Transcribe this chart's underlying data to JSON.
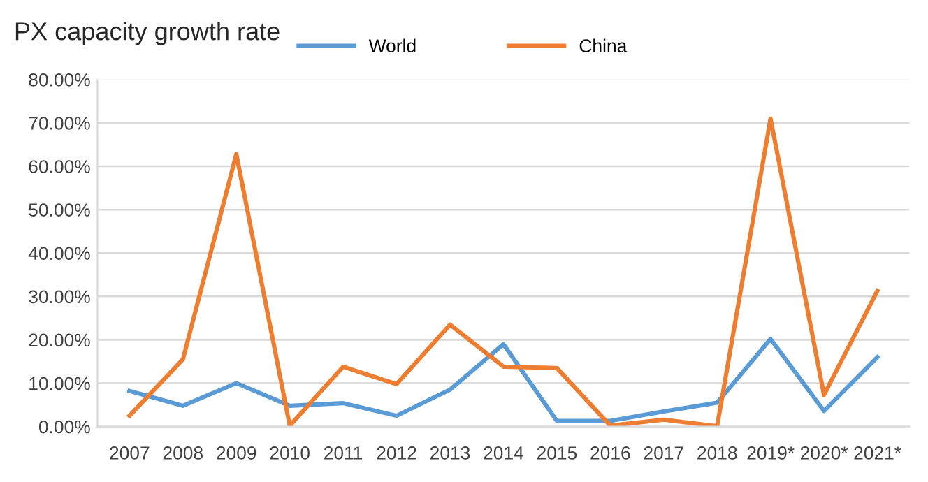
{
  "chart_data": {
    "type": "line",
    "title": "PX capacity growth rate",
    "categories": [
      "2007",
      "2008",
      "2009",
      "2010",
      "2011",
      "2012",
      "2013",
      "2014",
      "2015",
      "2016",
      "2017",
      "2018",
      "2019*",
      "2020*",
      "2021*"
    ],
    "series": [
      {
        "name": "World",
        "color": "#5b9bd5",
        "values": [
          8.2,
          4.8,
          10,
          4.8,
          5.4,
          2.5,
          8.5,
          19,
          1.3,
          1.3,
          3.5,
          5.5,
          20.2,
          3.6,
          16
        ]
      },
      {
        "name": "China",
        "color": "#ed7d31",
        "values": [
          2.5,
          15.5,
          62.8,
          0.2,
          13.8,
          9.8,
          23.5,
          13.8,
          13.5,
          0.2,
          1.6,
          0.1,
          71,
          7.3,
          31.3
        ]
      }
    ],
    "ylim": [
      0,
      80
    ],
    "yticks": [
      {
        "value": 0,
        "label": "0.00%"
      },
      {
        "value": 10,
        "label": "10.00%"
      },
      {
        "value": 20,
        "label": "20.00%"
      },
      {
        "value": 30,
        "label": "30.00%"
      },
      {
        "value": 40,
        "label": "40.00%"
      },
      {
        "value": 50,
        "label": "50.00%"
      },
      {
        "value": 60,
        "label": "60.00%"
      },
      {
        "value": 70,
        "label": "70.00%"
      },
      {
        "value": 80,
        "label": "80.00%"
      }
    ],
    "grid": "y",
    "legend": "top",
    "marker": "none",
    "line_style": "solid"
  }
}
